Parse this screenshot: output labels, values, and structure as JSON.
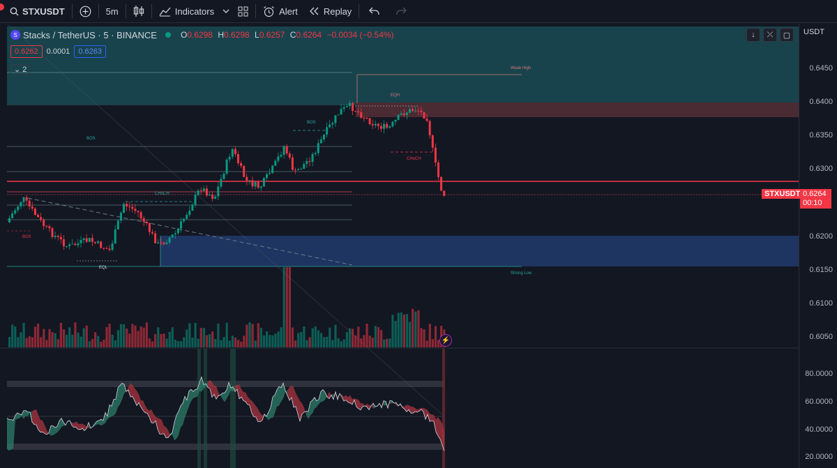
{
  "toolbar": {
    "symbol": "STXUSDT",
    "interval": "5m",
    "indicators_label": "Indicators",
    "alert_label": "Alert",
    "replay_label": "Replay"
  },
  "legend": {
    "name": "Stacks / TetherUS · 5 · BINANCE",
    "o_label": "O",
    "o_value": "0.6298",
    "h_label": "H",
    "h_value": "0.6298",
    "l_label": "L",
    "l_value": "0.6257",
    "c_label": "C",
    "c_value": "0.6264",
    "change": "−0.0034 (−0.54%)"
  },
  "bid_ask": {
    "sell": "0.6262",
    "spread": "0.0001",
    "buy": "0.6263"
  },
  "collapse_count": "2",
  "axis": {
    "currency": "USDT",
    "price_labels": [
      "0.6450",
      "0.6400",
      "0.6350",
      "0.6300",
      "0.6200",
      "0.6150",
      "0.6100",
      "0.6050"
    ],
    "osc_labels": [
      "80.0000",
      "60.0000",
      "40.0000",
      "20.0000"
    ]
  },
  "current": {
    "symbol_tag": "STXUSDT",
    "price": "0.6264",
    "countdown": "00:10"
  },
  "annotations": {
    "weak_high": "Weak High",
    "eqh": "EQH",
    "bos_left": "BOS",
    "bos_mid": "BOS",
    "choch_right": "CHoCH",
    "choch_mid": "CHoCH",
    "bos_low": "BOS",
    "eql": "EQL",
    "strong_low": "Strong Low"
  },
  "colors": {
    "up": "#089981",
    "down": "#f23645",
    "premium_zone": "#1b4b55",
    "discount_zone": "#1e3561",
    "supply_zone": "#4a2a33"
  },
  "icons": {
    "search": "search-icon",
    "add": "plus-circle-icon",
    "candles": "candlestick-icon",
    "indicators": "indicators-icon",
    "layout": "layout-grid-icon",
    "alert": "alarm-clock-icon",
    "replay": "rewind-icon",
    "undo": "undo-icon",
    "redo": "redo-icon"
  }
}
